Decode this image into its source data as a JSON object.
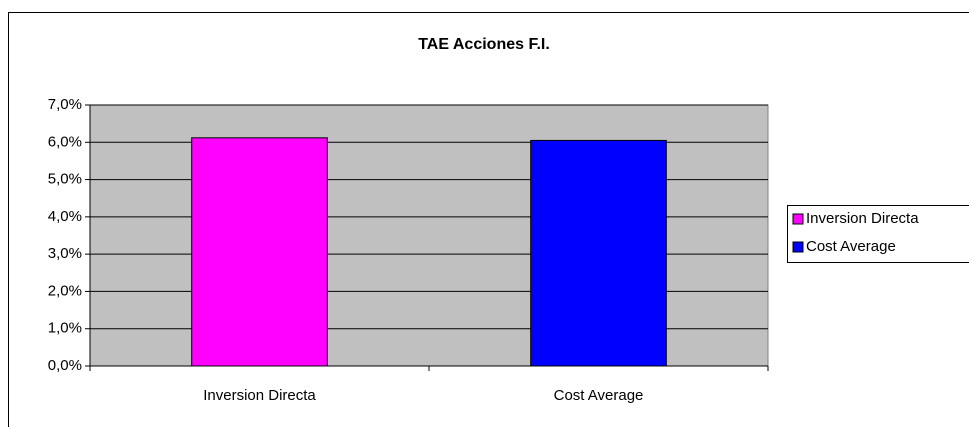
{
  "chart_data": {
    "type": "bar",
    "title": "TAE Acciones F.I.",
    "categories": [
      "Inversion Directa",
      "Cost Average"
    ],
    "values": [
      6.12,
      6.05
    ],
    "colors": [
      "#ff00ff",
      "#0000ff"
    ],
    "ylim": [
      0,
      7
    ],
    "yticks": [
      {
        "value": 0,
        "label": "0,0%"
      },
      {
        "value": 1,
        "label": "1,0%"
      },
      {
        "value": 2,
        "label": "2,0%"
      },
      {
        "value": 3,
        "label": "3,0%"
      },
      {
        "value": 4,
        "label": "4,0%"
      },
      {
        "value": 5,
        "label": "5,0%"
      },
      {
        "value": 6,
        "label": "6,0%"
      },
      {
        "value": 7,
        "label": "7,0%"
      }
    ],
    "grid": true,
    "legend": "right"
  }
}
